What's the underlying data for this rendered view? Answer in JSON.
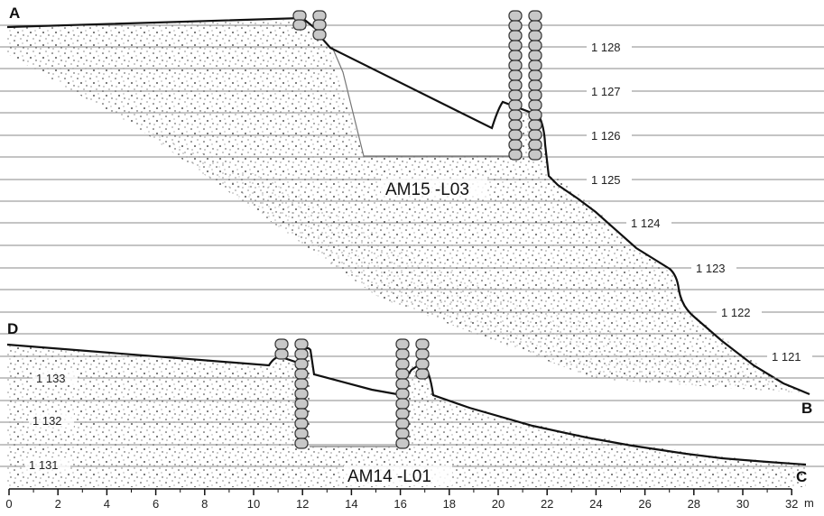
{
  "section_upper": {
    "label": "AM15 -L03",
    "start_point": "A",
    "end_point": "B",
    "elevations": [
      "1 128",
      "1 127",
      "1 126",
      "1 125",
      "1 124",
      "1 123",
      "1 122",
      "1 121"
    ]
  },
  "section_lower": {
    "label": "AM14 -L01",
    "start_point": "D",
    "end_point": "C",
    "elevations": [
      "1 133",
      "1 132",
      "1 131"
    ]
  },
  "scale_bar": {
    "ticks": [
      "0",
      "2",
      "4",
      "6",
      "8",
      "10",
      "12",
      "14",
      "16",
      "18",
      "20",
      "22",
      "24",
      "26",
      "28",
      "30",
      "32"
    ],
    "unit": "m"
  }
}
